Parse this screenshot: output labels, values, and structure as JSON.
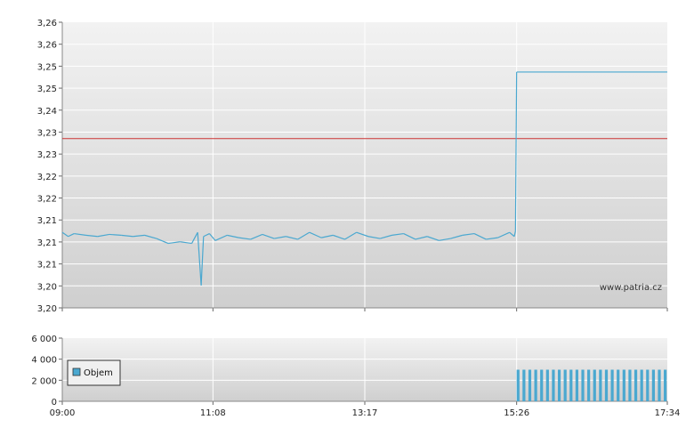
{
  "chart_data": [
    {
      "type": "line",
      "title": "",
      "xlabel": "",
      "ylabel": "",
      "ylim": [
        3.195,
        3.265
      ],
      "y_tick_labels": [
        "3,26",
        "3,26",
        "3,25",
        "3,25",
        "3,24",
        "3,23",
        "3,23",
        "3,22",
        "3,22",
        "3,21",
        "3,21",
        "3,21",
        "3,20",
        "3,20"
      ],
      "x_tick_labels": [
        "09:00",
        "11:08",
        "13:17",
        "15:26",
        "17:34"
      ],
      "reference_line": {
        "value": 3.2365,
        "color": "#cc3333"
      },
      "watermark": "www.patria.cz",
      "grid": true,
      "series_color": "#4aa8d0",
      "series": [
        {
          "x": [
            "09:00",
            "09:05",
            "09:10",
            "09:20",
            "09:30",
            "09:40",
            "09:50",
            "10:00",
            "10:10",
            "10:20",
            "10:30",
            "10:40",
            "10:50",
            "10:55",
            "10:58",
            "11:00",
            "11:05",
            "11:10",
            "11:20",
            "11:30",
            "11:40",
            "11:50",
            "12:00",
            "12:10",
            "12:20",
            "12:30",
            "12:40",
            "12:50",
            "13:00",
            "13:10",
            "13:20",
            "13:30",
            "13:40",
            "13:50",
            "14:00",
            "14:10",
            "14:20",
            "14:30",
            "14:40",
            "14:50",
            "15:00",
            "15:10",
            "15:20",
            "15:24",
            "15:25",
            "15:26",
            "17:34"
          ],
          "y": [
            3.2135,
            3.2125,
            3.2132,
            3.2128,
            3.2125,
            3.213,
            3.2128,
            3.2125,
            3.2128,
            3.212,
            3.2108,
            3.2112,
            3.2108,
            3.2135,
            3.2005,
            3.2125,
            3.2132,
            3.2115,
            3.2128,
            3.2122,
            3.2118,
            3.213,
            3.212,
            3.2125,
            3.2118,
            3.2135,
            3.2122,
            3.2128,
            3.2118,
            3.2135,
            3.2125,
            3.212,
            3.2128,
            3.2132,
            3.2118,
            3.2125,
            3.2115,
            3.212,
            3.2128,
            3.2132,
            3.2118,
            3.2122,
            3.2135,
            3.2125,
            3.2138,
            3.2528,
            3.2528
          ]
        }
      ]
    },
    {
      "type": "bar",
      "title": "",
      "xlabel": "",
      "ylabel": "",
      "ylim": [
        0,
        6000
      ],
      "y_tick_labels": [
        "6 000",
        "4 000",
        "2 000",
        "0"
      ],
      "x_tick_labels": [
        "09:00",
        "11:08",
        "13:17",
        "15:26",
        "17:34"
      ],
      "legend": {
        "label": "Objem",
        "position": "left"
      },
      "bar_color": "#4aa8d0",
      "series": [
        {
          "name": "Objem",
          "x": [
            "15:26",
            "15:31",
            "15:36",
            "15:41",
            "15:46",
            "15:51",
            "15:56",
            "16:01",
            "16:06",
            "16:11",
            "16:16",
            "16:21",
            "16:26",
            "16:31",
            "16:36",
            "16:41",
            "16:46",
            "16:51",
            "16:56",
            "17:01",
            "17:06",
            "17:11",
            "17:16",
            "17:21",
            "17:26",
            "17:31"
          ],
          "values": [
            3000,
            3000,
            3000,
            3000,
            3000,
            3000,
            3000,
            3000,
            3000,
            3000,
            3000,
            3000,
            3000,
            3000,
            3000,
            3000,
            3000,
            3000,
            3000,
            3000,
            3000,
            3000,
            3000,
            3000,
            3000,
            3000
          ]
        }
      ]
    }
  ]
}
